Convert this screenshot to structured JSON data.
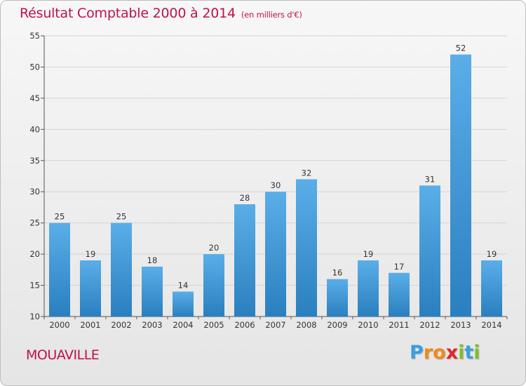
{
  "header": {
    "title": "Résultat Comptable 2000 à 2014",
    "unit": "(en milliers d'€)"
  },
  "footer": {
    "commune": "MOUAVILLE",
    "brand_letters": [
      "P",
      "r",
      "o",
      "x",
      "i",
      "t",
      "i"
    ],
    "brand_colors": [
      "#3a9ee0",
      "#f08a1c",
      "#f08a1c",
      "#e2262b",
      "#7fbf2a",
      "#3a9ee0",
      "#7fbf2a"
    ]
  },
  "chart_data": {
    "type": "bar",
    "categories": [
      "2000",
      "2001",
      "2002",
      "2003",
      "2004",
      "2005",
      "2006",
      "2007",
      "2008",
      "2009",
      "2010",
      "2011",
      "2012",
      "2013",
      "2014"
    ],
    "values": [
      25,
      19,
      25,
      18,
      14,
      20,
      28,
      30,
      32,
      16,
      19,
      17,
      31,
      52,
      19
    ],
    "ylim": [
      10,
      55
    ],
    "yticks": [
      10,
      15,
      20,
      25,
      30,
      35,
      40,
      45,
      50,
      55
    ],
    "grid": true,
    "bar_color_top": "#5aaee8",
    "bar_color_bottom": "#2a7fbf"
  }
}
